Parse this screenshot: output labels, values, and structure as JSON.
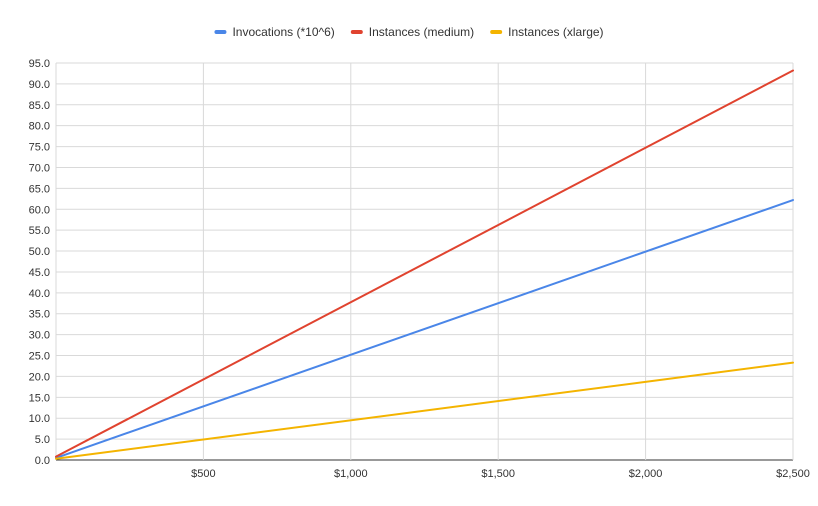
{
  "chart_data": {
    "type": "line",
    "title": "",
    "xlabel": "",
    "ylabel": "",
    "legend_position": "top",
    "grid": true,
    "xlim": [
      0,
      2500
    ],
    "ylim": [
      0,
      95
    ],
    "x_ticks": [
      500,
      1000,
      1500,
      2000,
      2500
    ],
    "x_tick_labels": [
      "$500",
      "$1,000",
      "$1,500",
      "$2,000",
      "$2,500"
    ],
    "y_ticks": [
      0,
      5,
      10,
      15,
      20,
      25,
      30,
      35,
      40,
      45,
      50,
      55,
      60,
      65,
      70,
      75,
      80,
      85,
      90,
      95
    ],
    "y_tick_labels": [
      "0.0",
      "5.0",
      "10.0",
      "15.0",
      "20.0",
      "25.0",
      "30.0",
      "35.0",
      "40.0",
      "45.0",
      "50.0",
      "55.0",
      "60.0",
      "65.0",
      "70.0",
      "75.0",
      "80.0",
      "85.0",
      "90.0",
      "95.0"
    ],
    "series": [
      {
        "name": "Invocations (*10^6)",
        "color": "#4a86e8",
        "x": [
          0,
          2500
        ],
        "values": [
          0.5,
          62.2
        ]
      },
      {
        "name": "Instances (medium)",
        "color": "#e0432f",
        "x": [
          0,
          2500
        ],
        "values": [
          0.8,
          93.2
        ]
      },
      {
        "name": "Instances (xlarge)",
        "color": "#f4b400",
        "x": [
          0,
          2500
        ],
        "values": [
          0.3,
          23.3
        ]
      }
    ]
  }
}
